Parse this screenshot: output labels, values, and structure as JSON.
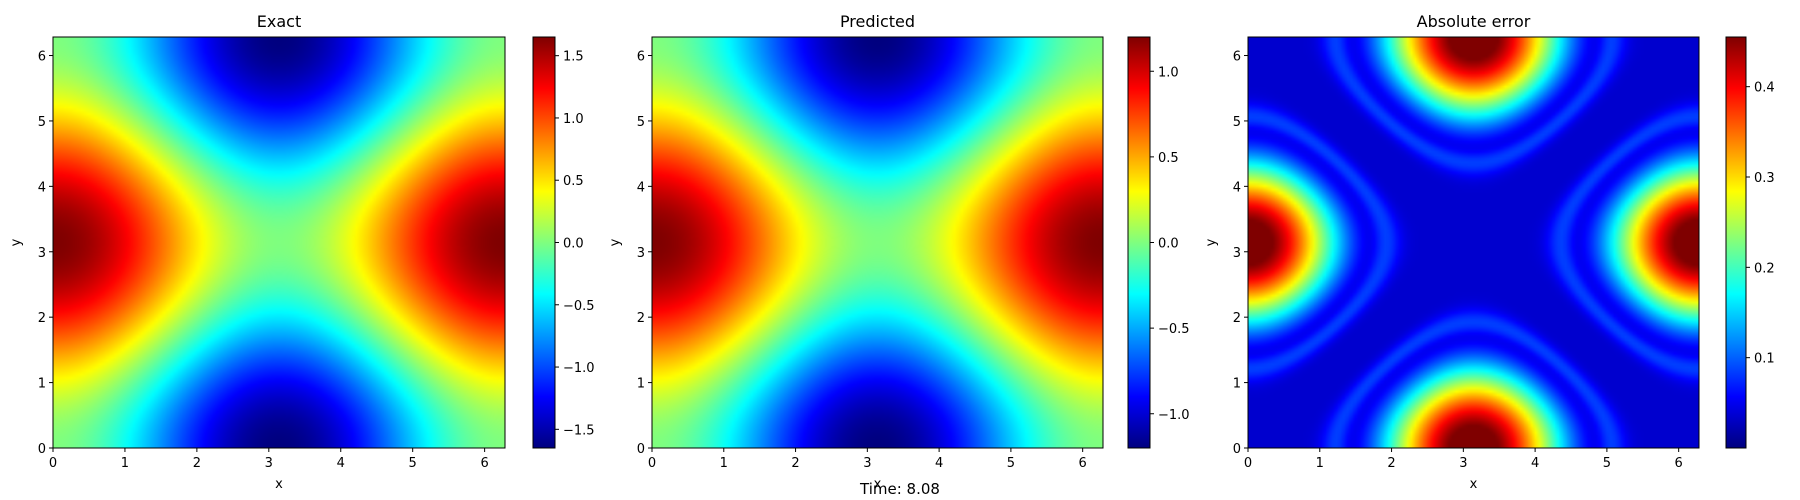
{
  "figure": {
    "caption": "Time: 8.08"
  },
  "colormap": [
    "#00007f",
    "#0000ff",
    "#007fff",
    "#00ffff",
    "#7fff7f",
    "#ffff00",
    "#ff7f00",
    "#ff0000",
    "#7f0000"
  ],
  "chart_data": [
    {
      "type": "heatmap",
      "title": "Exact",
      "xlabel": "x",
      "ylabel": "y",
      "field": "exact",
      "xlim": [
        0,
        6.2832
      ],
      "ylim": [
        0,
        6.2832
      ],
      "xticks": [
        0,
        1,
        2,
        3,
        4,
        5,
        6
      ],
      "yticks": [
        0,
        1,
        2,
        3,
        4,
        5,
        6
      ],
      "xtick_labels": [
        "0",
        "1",
        "2",
        "3",
        "4",
        "5",
        "6"
      ],
      "ytick_labels": [
        "0",
        "1",
        "2",
        "3",
        "4",
        "5",
        "6"
      ],
      "colorbar": {
        "min": -1.65,
        "max": 1.65,
        "ticks": [
          -1.5,
          -1.0,
          -0.5,
          0.0,
          0.5,
          1.0,
          1.5
        ],
        "tick_labels": [
          "−1.5",
          "−1.0",
          "−0.5",
          "0.0",
          "0.5",
          "1.0",
          "1.5"
        ]
      }
    },
    {
      "type": "heatmap",
      "title": "Predicted",
      "xlabel": "x",
      "ylabel": "y",
      "field": "predicted",
      "xlim": [
        0,
        6.2832
      ],
      "ylim": [
        0,
        6.2832
      ],
      "xticks": [
        0,
        1,
        2,
        3,
        4,
        5,
        6
      ],
      "yticks": [
        0,
        1,
        2,
        3,
        4,
        5,
        6
      ],
      "xtick_labels": [
        "0",
        "1",
        "2",
        "3",
        "4",
        "5",
        "6"
      ],
      "ytick_labels": [
        "0",
        "1",
        "2",
        "3",
        "4",
        "5",
        "6"
      ],
      "colorbar": {
        "min": -1.2,
        "max": 1.2,
        "ticks": [
          -1.0,
          -0.5,
          0.0,
          0.5,
          1.0
        ],
        "tick_labels": [
          "−1.0",
          "−0.5",
          "0.0",
          "0.5",
          "1.0"
        ]
      }
    },
    {
      "type": "heatmap",
      "title": "Absolute error",
      "xlabel": "x",
      "ylabel": "y",
      "field": "error",
      "xlim": [
        0,
        6.2832
      ],
      "ylim": [
        0,
        6.2832
      ],
      "xticks": [
        0,
        1,
        2,
        3,
        4,
        5,
        6
      ],
      "yticks": [
        0,
        1,
        2,
        3,
        4,
        5,
        6
      ],
      "xtick_labels": [
        "0",
        "1",
        "2",
        "3",
        "4",
        "5",
        "6"
      ],
      "ytick_labels": [
        "0",
        "1",
        "2",
        "3",
        "4",
        "5",
        "6"
      ],
      "colorbar": {
        "min": 0.0,
        "max": 0.455,
        "ticks": [
          0.1,
          0.2,
          0.3,
          0.4
        ],
        "tick_labels": [
          "0.1",
          "0.2",
          "0.3",
          "0.4"
        ]
      }
    }
  ]
}
